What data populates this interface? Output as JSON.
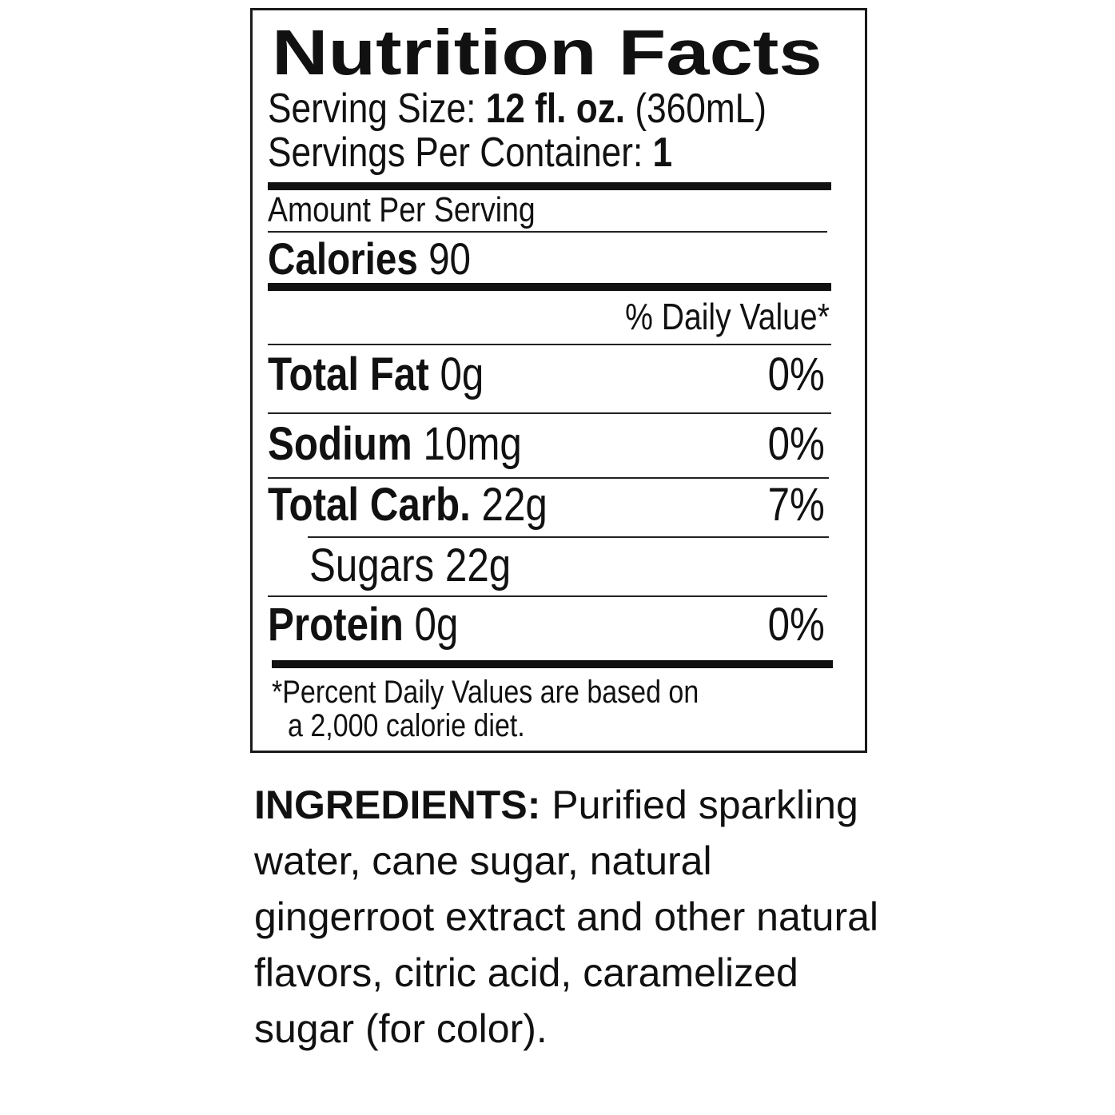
{
  "label": {
    "title": "Nutrition Facts",
    "serving_size_label": "Serving Size:",
    "serving_size_value": "12 fl. oz.",
    "serving_size_metric": "(360mL)",
    "servings_label": "Servings Per Container:",
    "servings_value": "1",
    "amount_per_serving": "Amount Per Serving",
    "calories_label": "Calories",
    "calories_value": "90",
    "daily_value_header": "% Daily Value*",
    "nutrients": [
      {
        "name": "Total Fat",
        "amount": "0g",
        "dv": "0%"
      },
      {
        "name": "Sodium",
        "amount": "10mg",
        "dv": "0%"
      },
      {
        "name": "Total Carb.",
        "amount": "22g",
        "dv": "7%"
      },
      {
        "name": "Sugars",
        "amount": "22g",
        "dv": ""
      },
      {
        "name": "Protein",
        "amount": "0g",
        "dv": "0%"
      }
    ],
    "footnote_line1": "*Percent Daily Values are based on",
    "footnote_line2": "a 2,000 calorie diet."
  },
  "ingredients": {
    "label": "INGREDIENTS:",
    "text": "Purified sparkling water, cane sugar, natural gingerroot extract and other natural flavors, citric acid, caramelized sugar (for color)."
  }
}
